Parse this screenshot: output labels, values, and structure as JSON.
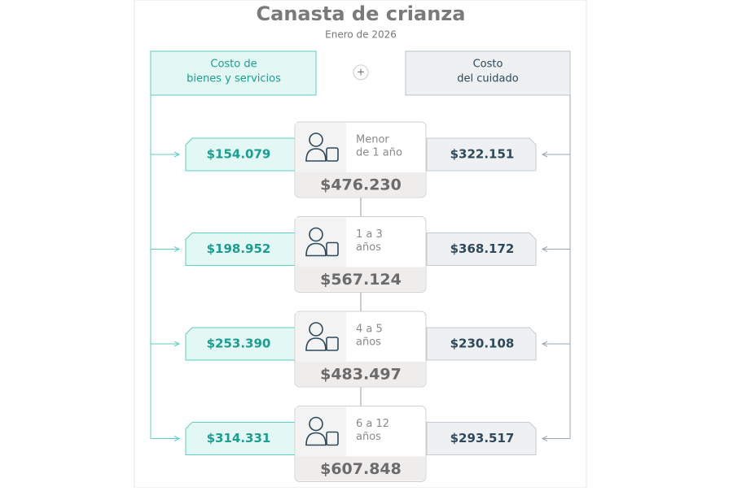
{
  "header": {
    "title": "Canasta de crianza",
    "subtitle": "Enero de 2026"
  },
  "columns": {
    "left": [
      "Costo de",
      "bienes y servicios"
    ],
    "plus": "+",
    "right": [
      "Costo",
      "del cuidado"
    ]
  },
  "rows": [
    {
      "age": [
        "Menor",
        "de 1 año"
      ],
      "goods": "$154.079",
      "care": "$322.151",
      "total": "$476.230"
    },
    {
      "age": [
        "1 a 3",
        "años"
      ],
      "goods": "$198.952",
      "care": "$368.172",
      "total": "$567.124"
    },
    {
      "age": [
        "4 a 5",
        "años"
      ],
      "goods": "$253.390",
      "care": "$230.108",
      "total": "$483.497"
    },
    {
      "age": [
        "6 a 12",
        "años"
      ],
      "goods": "$314.331",
      "care": "$293.517",
      "total": "$607.848"
    }
  ]
}
